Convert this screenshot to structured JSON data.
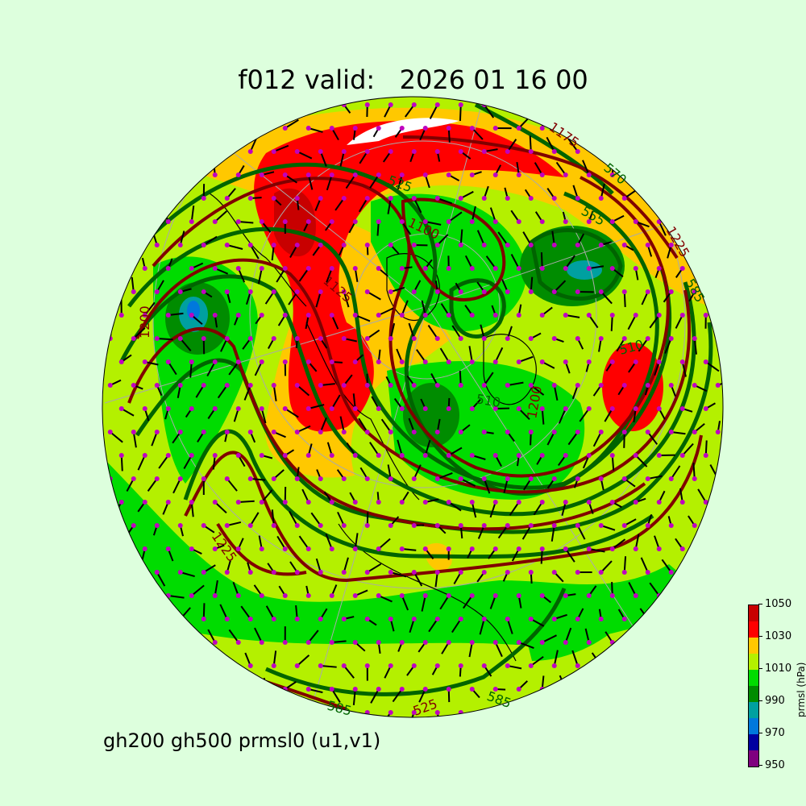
{
  "title": "f012 valid:   2026 01 16 00",
  "subtitle": "gh200 gh500 prmsl0 (u1,v1)",
  "colorbar": {
    "label": "prmsl (hPa)",
    "ticks": [
      "950",
      "970",
      "990",
      "1010",
      "1030",
      "1050"
    ],
    "levels": [
      950,
      960,
      970,
      980,
      990,
      1000,
      1010,
      1020,
      1030,
      1040,
      1050
    ],
    "colors": [
      "#7f007f",
      "#0000a0",
      "#0078dc",
      "#00a0a0",
      "#008c00",
      "#00dc00",
      "#b4f000",
      "#ffc800",
      "#ff0000",
      "#c80000"
    ]
  },
  "contour_colors": {
    "gh200": "#800000",
    "gh500": "#006400",
    "wind_dots": "#c000c0"
  },
  "contour_labels": [
    "1175",
    "570",
    "555",
    "1225",
    "585",
    "1200",
    "525",
    "1100",
    "1125",
    "510",
    "1200",
    "1225",
    "585",
    "525",
    "585",
    "510"
  ]
}
